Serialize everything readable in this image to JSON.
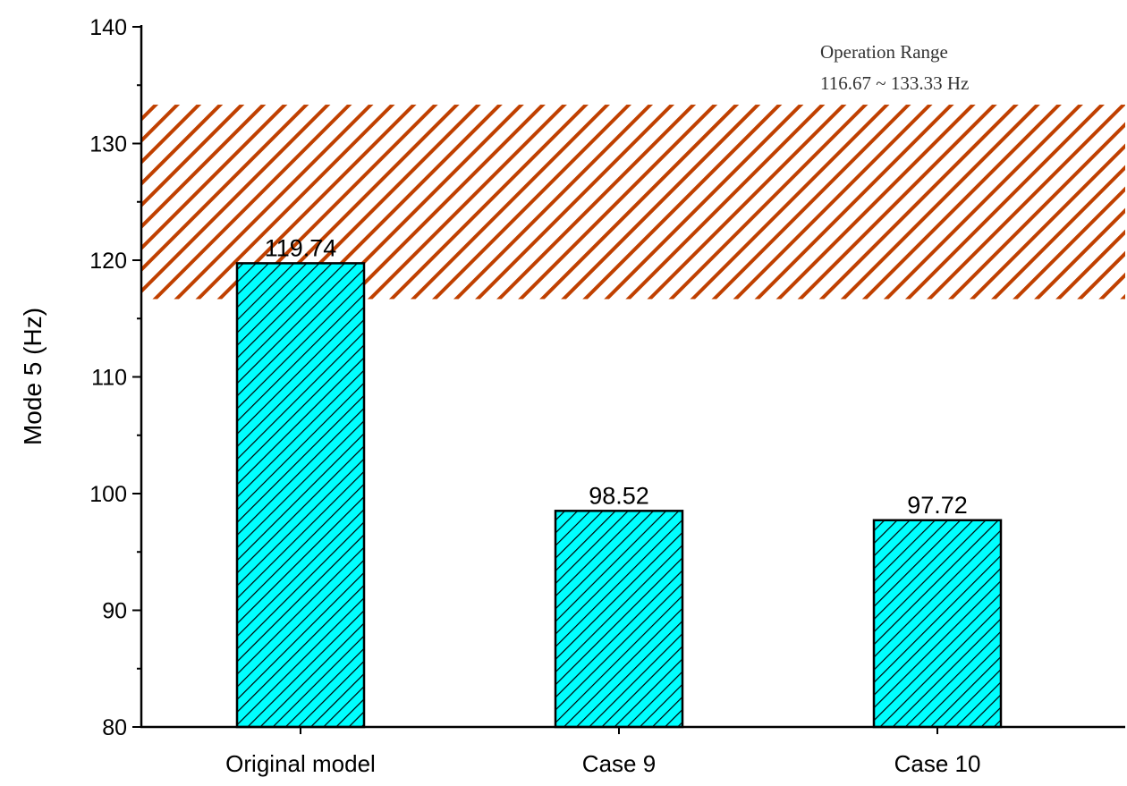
{
  "chart_data": {
    "type": "bar",
    "title": "",
    "xlabel": "",
    "ylabel": "Mode 5 (Hz)",
    "ylim": [
      80,
      140
    ],
    "yticks": [
      80,
      90,
      100,
      110,
      120,
      130,
      140
    ],
    "ytick_labels": [
      "80",
      "90",
      "100",
      "110",
      "120",
      "130",
      "140"
    ],
    "categories": [
      "Original model",
      "Case 9",
      "Case 10"
    ],
    "values": [
      119.74,
      98.52,
      97.72
    ],
    "data_labels": [
      "119.74",
      "98.52",
      "97.72"
    ],
    "bar_color": "#00FFFF",
    "bar_hatch": "diagonal",
    "shaded_region": {
      "ymin": 116.67,
      "ymax": 133.33,
      "color": "#C04000",
      "hatch": "diagonal",
      "annotation": [
        "Operation Range",
        "116.67 ~ 133.33 Hz"
      ],
      "annotation_position": "top-right"
    },
    "grid": false,
    "legend": "none"
  }
}
